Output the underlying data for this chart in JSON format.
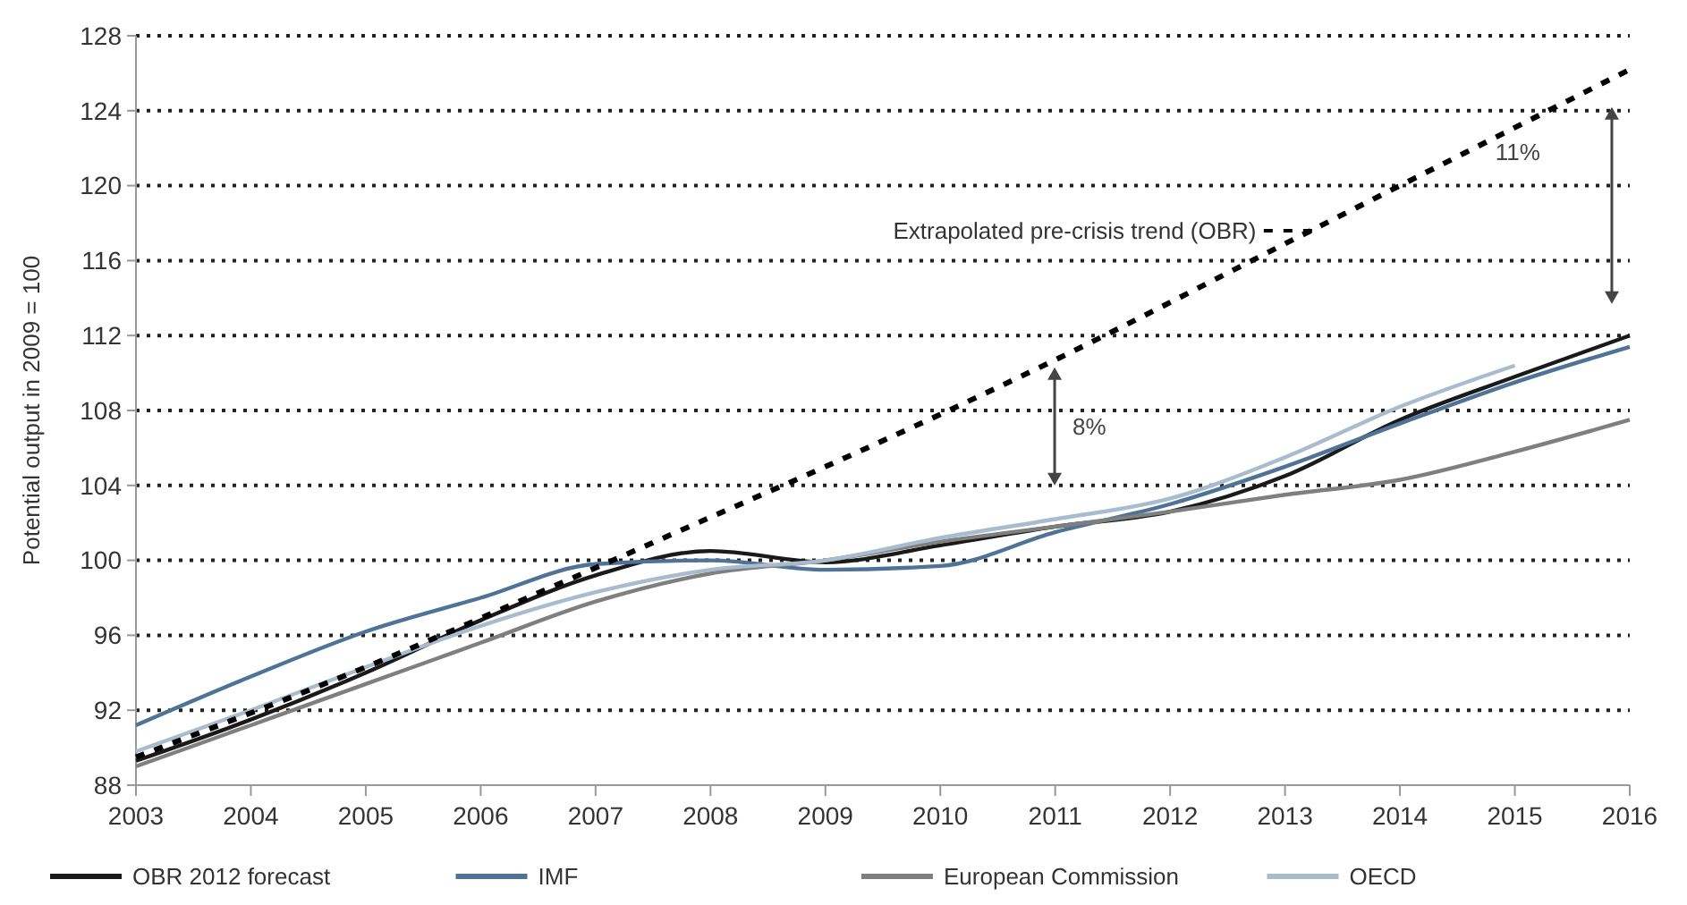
{
  "chart_data": {
    "type": "line",
    "ylabel": "Potential output in 2009 = 100",
    "x": [
      2003,
      2004,
      2005,
      2006,
      2007,
      2008,
      2009,
      2010,
      2011,
      2012,
      2013,
      2014,
      2015,
      2016
    ],
    "xlim": [
      2003,
      2016
    ],
    "xticks": [
      2003,
      2004,
      2005,
      2006,
      2007,
      2008,
      2009,
      2010,
      2011,
      2012,
      2013,
      2014,
      2015,
      2016
    ],
    "ylim": [
      88,
      128
    ],
    "yticks": [
      88,
      92,
      96,
      100,
      104,
      108,
      112,
      116,
      120,
      124,
      128
    ],
    "grid": "y",
    "legend": "bottom",
    "series": [
      {
        "name": "OBR 2012 forecast",
        "color": "#1a1a1a",
        "values": [
          89.3,
          91.5,
          94,
          96.8,
          99.2,
          100.5,
          99.9,
          100.8,
          101.8,
          102.6,
          104.5,
          107.5,
          109.8,
          112
        ]
      },
      {
        "name": "IMF",
        "color": "#4f7396",
        "values": [
          91.2,
          93.8,
          96.2,
          98,
          99.8,
          100,
          99.5,
          99.7,
          101.5,
          103,
          105,
          107.3,
          109.5,
          111.4
        ]
      },
      {
        "name": "European Commission",
        "color": "#7f7f7f",
        "values": [
          89,
          91.2,
          93.4,
          95.6,
          97.8,
          99.3,
          100,
          101,
          101.8,
          102.6,
          103.5,
          104.3,
          105.8,
          107.5
        ]
      },
      {
        "name": "OECD",
        "color": "#a9bccd",
        "values": [
          89.8,
          92,
          94.3,
          96.5,
          98.3,
          99.5,
          100,
          101.2,
          102.2,
          103.3,
          105.5,
          108.2,
          110.4,
          null
        ]
      },
      {
        "name": "Extrapolated pre-crisis trend (OBR)",
        "color": "#000000",
        "line_style": "dashed",
        "x": [
          2003,
          2005,
          2007,
          2008,
          2009,
          2011,
          2013,
          2016
        ],
        "values": [
          89.5,
          94.3,
          99.6,
          102.3,
          105,
          110.7,
          116.9,
          126.2
        ]
      }
    ],
    "annotations": [
      "8%",
      "11%"
    ]
  }
}
